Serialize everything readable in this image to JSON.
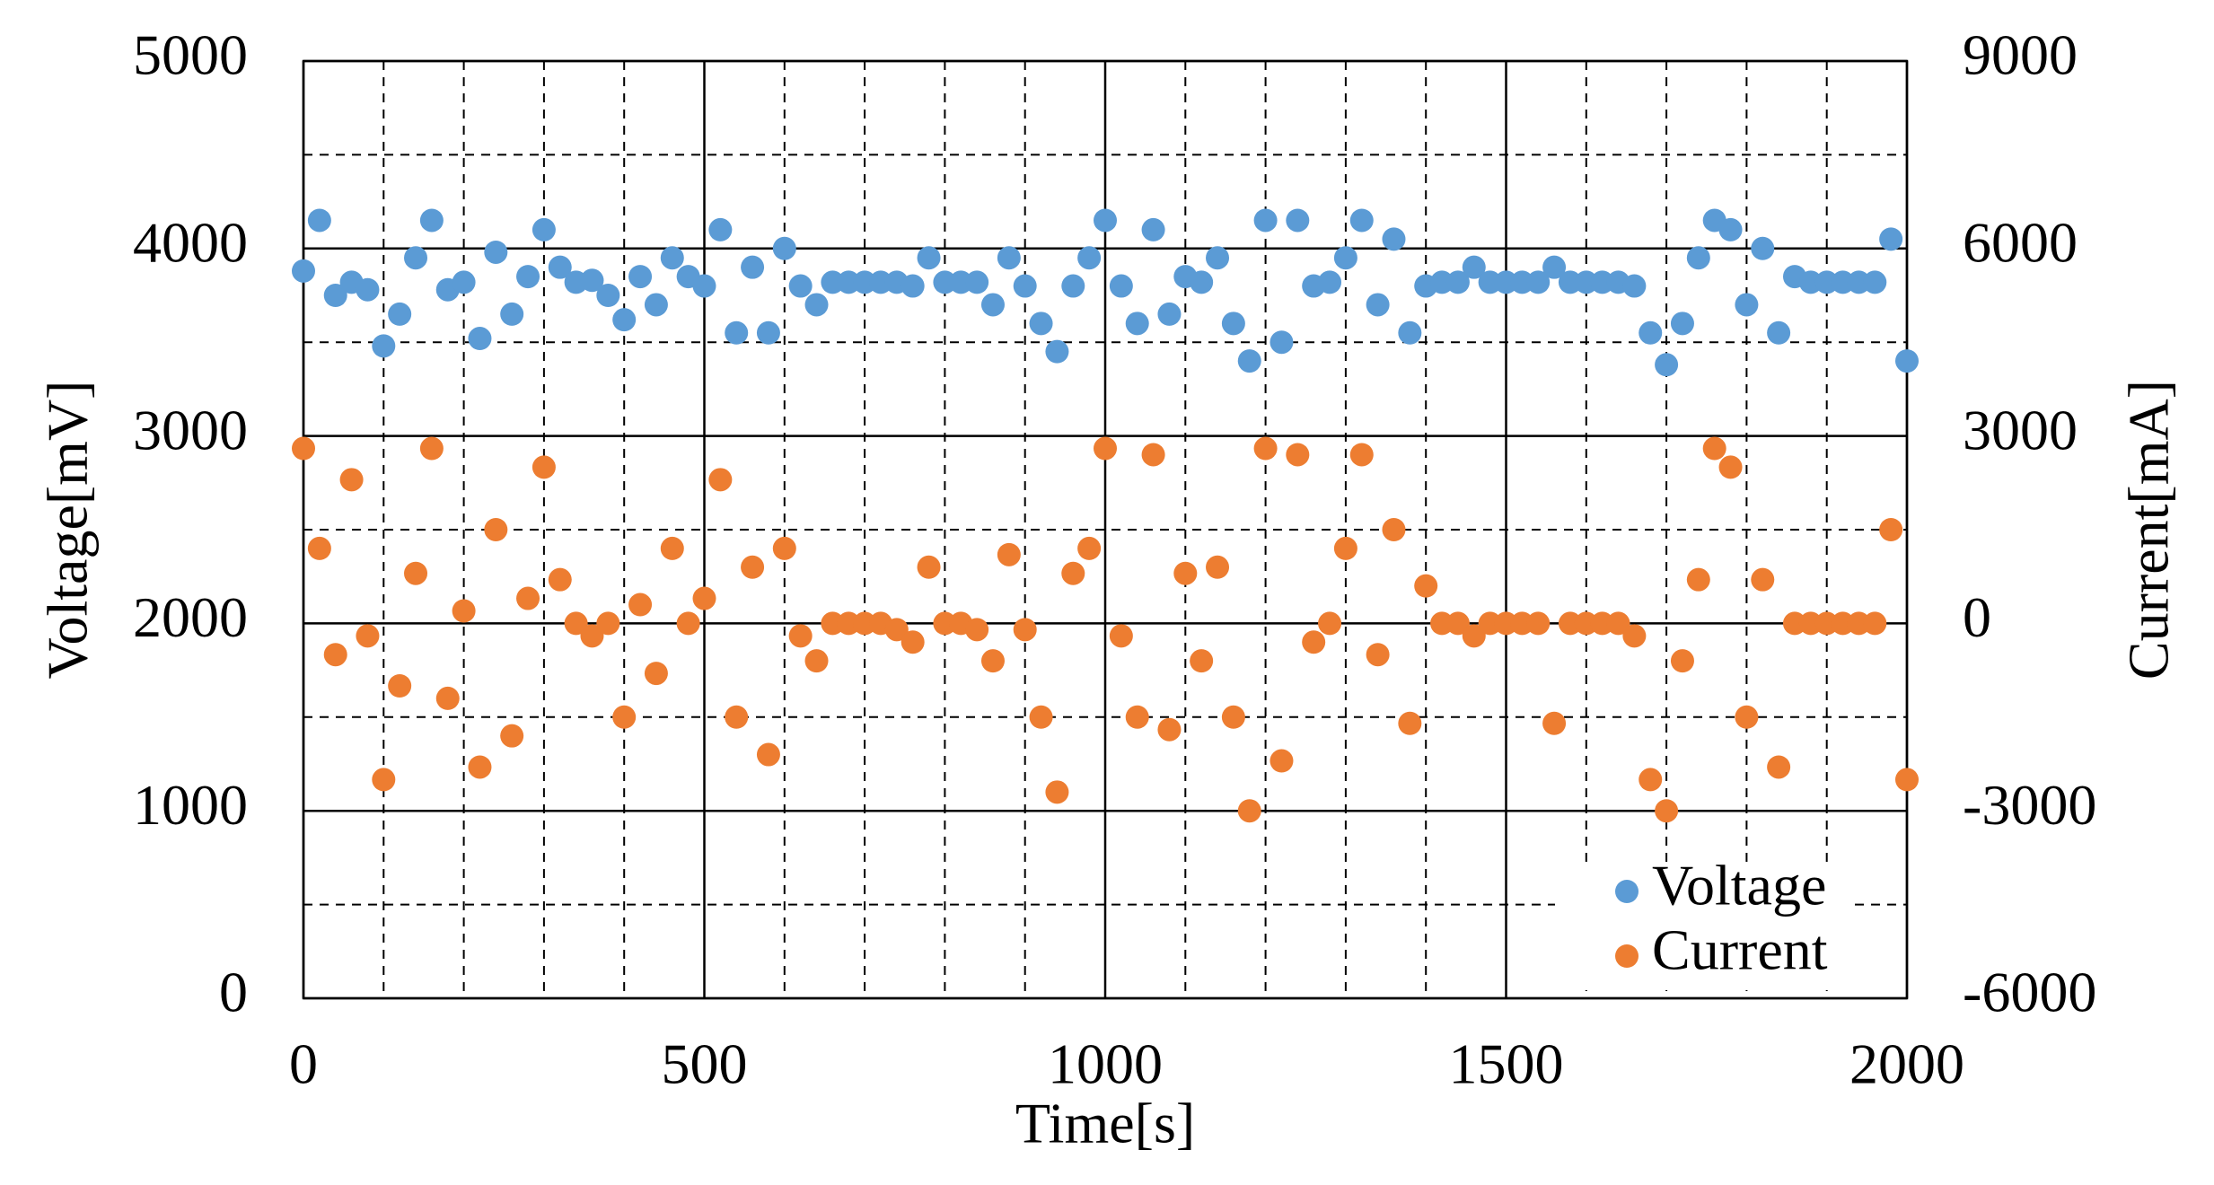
{
  "chart_data": {
    "type": "scatter",
    "xlabel": "Time[s]",
    "ylabel": "Voltage[mV]",
    "y2label": "Current[mA]",
    "xlim": [
      0,
      2000
    ],
    "xticks": [
      0,
      500,
      1000,
      1500,
      2000
    ],
    "ylim": [
      0,
      5000
    ],
    "yticks": [
      0,
      1000,
      2000,
      3000,
      4000,
      5000
    ],
    "y2lim": [
      -6000,
      9000
    ],
    "y2ticks": [
      -6000,
      -3000,
      0,
      3000,
      6000,
      9000
    ],
    "grid": true,
    "xgrid_minor": [
      100,
      200,
      300,
      400,
      600,
      700,
      800,
      900,
      1100,
      1200,
      1300,
      1400,
      1600,
      1700,
      1800,
      1900
    ],
    "ygrid_minor": [
      500,
      1500,
      2500,
      3500,
      4500
    ],
    "legend": "lower right",
    "x": [
      0,
      20,
      40,
      60,
      80,
      100,
      120,
      140,
      160,
      180,
      200,
      220,
      240,
      260,
      280,
      300,
      320,
      340,
      360,
      380,
      400,
      420,
      440,
      460,
      480,
      500,
      520,
      540,
      560,
      580,
      600,
      620,
      640,
      660,
      680,
      700,
      720,
      740,
      760,
      780,
      800,
      820,
      840,
      860,
      880,
      900,
      920,
      940,
      960,
      980,
      1000,
      1020,
      1040,
      1060,
      1080,
      1100,
      1120,
      1140,
      1160,
      1180,
      1200,
      1220,
      1240,
      1260,
      1280,
      1300,
      1320,
      1340,
      1360,
      1380,
      1400,
      1420,
      1440,
      1460,
      1480,
      1500,
      1520,
      1540,
      1560,
      1580,
      1600,
      1620,
      1640,
      1660,
      1680,
      1700,
      1720,
      1740,
      1760,
      1780,
      1800,
      1820,
      1840,
      1860,
      1880,
      1900,
      1920,
      1940,
      1960,
      1980,
      2000
    ],
    "series": [
      {
        "name": "Voltage",
        "color": "#5b9bd5",
        "axis": "y",
        "values": [
          3880,
          4150,
          3750,
          3820,
          3780,
          3480,
          3650,
          3950,
          4150,
          3780,
          3820,
          3520,
          3980,
          3650,
          3850,
          4100,
          3900,
          3820,
          3830,
          3750,
          3620,
          3850,
          3700,
          3950,
          3850,
          3800,
          4100,
          3550,
          3900,
          3550,
          4000,
          3800,
          3700,
          3820,
          3820,
          3820,
          3820,
          3820,
          3800,
          3950,
          3820,
          3820,
          3820,
          3700,
          3950,
          3800,
          3600,
          3450,
          3800,
          3950,
          4150,
          3800,
          3600,
          4100,
          3650,
          3850,
          3820,
          3950,
          3600,
          3400,
          4150,
          3500,
          4150,
          3800,
          3820,
          3950,
          4150,
          3700,
          4050,
          3550,
          3800,
          3820,
          3820,
          3900,
          3820,
          3820,
          3820,
          3820,
          3900,
          3820,
          3820,
          3820,
          3820,
          3800,
          3550,
          3380,
          3600,
          3950,
          4150,
          4100,
          3700,
          4000,
          3550,
          3850,
          3820,
          3820,
          3820,
          3820,
          3820,
          4050,
          3400
        ]
      },
      {
        "name": "Current",
        "color": "#ed7d31",
        "axis": "y2",
        "values": [
          2800,
          1200,
          -500,
          2300,
          -200,
          -2500,
          -1000,
          800,
          2800,
          -1200,
          200,
          -2300,
          1500,
          -1800,
          400,
          2500,
          700,
          0,
          -200,
          0,
          -1500,
          300,
          -800,
          1200,
          0,
          400,
          2300,
          -1500,
          900,
          -2100,
          1200,
          -200,
          -600,
          0,
          0,
          0,
          0,
          -100,
          -300,
          900,
          0,
          0,
          -100,
          -600,
          1100,
          -100,
          -1500,
          -2700,
          800,
          1200,
          2800,
          -200,
          -1500,
          2700,
          -1700,
          800,
          -600,
          900,
          -1500,
          -3000,
          2800,
          -2200,
          2700,
          -300,
          0,
          1200,
          2700,
          -500,
          1500,
          -1600,
          600,
          0,
          0,
          -200,
          0,
          0,
          0,
          0,
          -1600,
          0,
          0,
          0,
          0,
          -200,
          -2500,
          -3000,
          -600,
          700,
          2800,
          2500,
          -1500,
          700,
          -2300,
          0,
          0,
          0,
          0,
          0,
          0,
          1500,
          -2500
        ]
      }
    ]
  }
}
